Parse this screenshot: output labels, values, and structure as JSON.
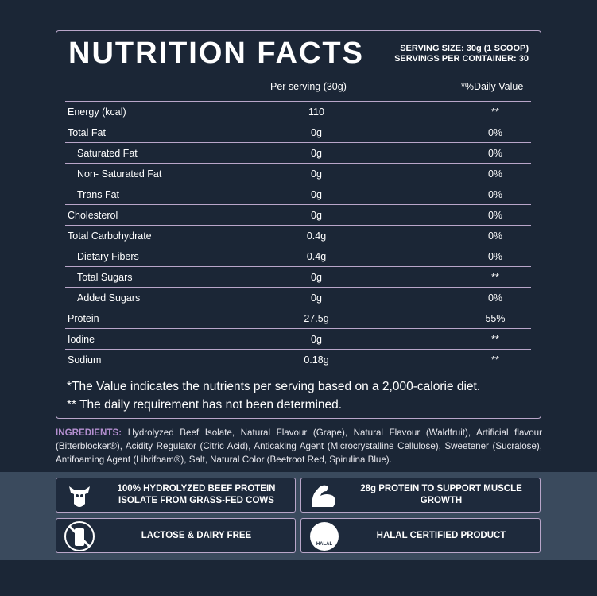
{
  "header": {
    "title": "NUTRITION FACTS",
    "serving_size": "SERVING SIZE: 30g (1 SCOOP)",
    "servings_per_container": "SERVINGS PER CONTAINER: 30"
  },
  "table": {
    "columns": [
      "Per serving (30g)",
      "*%Daily Value"
    ],
    "rows": [
      {
        "name": "Energy (kcal)",
        "amount": "110",
        "daily": "**",
        "indent": false
      },
      {
        "name": "Total Fat",
        "amount": "0g",
        "daily": "0%",
        "indent": false
      },
      {
        "name": "Saturated Fat",
        "amount": "0g",
        "daily": "0%",
        "indent": true
      },
      {
        "name": "Non- Saturated Fat",
        "amount": "0g",
        "daily": "0%",
        "indent": true
      },
      {
        "name": "Trans Fat",
        "amount": "0g",
        "daily": "0%",
        "indent": true
      },
      {
        "name": "Cholesterol",
        "amount": "0g",
        "daily": "0%",
        "indent": false
      },
      {
        "name": "Total Carbohydrate",
        "amount": "0.4g",
        "daily": "0%",
        "indent": false
      },
      {
        "name": "Dietary Fibers",
        "amount": "0.4g",
        "daily": "0%",
        "indent": true
      },
      {
        "name": "Total Sugars",
        "amount": "0g",
        "daily": "**",
        "indent": true
      },
      {
        "name": "Added Sugars",
        "amount": "0g",
        "daily": "0%",
        "indent": true
      },
      {
        "name": "Protein",
        "amount": "27.5g",
        "daily": "55%",
        "indent": false
      },
      {
        "name": "Iodine",
        "amount": "0g",
        "daily": "**",
        "indent": false
      },
      {
        "name": "Sodium",
        "amount": "0.18g",
        "daily": "**",
        "indent": false
      }
    ]
  },
  "footnotes": [
    "*The Value indicates the nutrients per serving based on a 2,000-calorie diet.",
    "** The daily requirement has not been determined."
  ],
  "ingredients": {
    "label": "INGREDIENTS:",
    "text": "Hydrolyzed Beef Isolate, Natural Flavour (Grape), Natural Flavour (Waldfruit), Artificial flavour (Bitterblocker®), Acidity Regulator (Citric Acid), Anticaking Agent (Microcrystalline Cellulose), Sweetener (Sucralose), Antifoaming Agent (Librifoam®), Salt, Natural Color (Beetroot Red, Spirulina Blue)."
  },
  "badges": [
    {
      "text": "100% HYDROLYZED BEEF PROTEIN ISOLATE FROM GRASS-FED COWS"
    },
    {
      "text": "28g PROTEIN TO SUPPORT MUSCLE GROWTH"
    },
    {
      "text": "LACTOSE & DAIRY FREE"
    },
    {
      "text": "HALAL CERTIFIED PRODUCT",
      "icon_text": "HALAL"
    }
  ]
}
